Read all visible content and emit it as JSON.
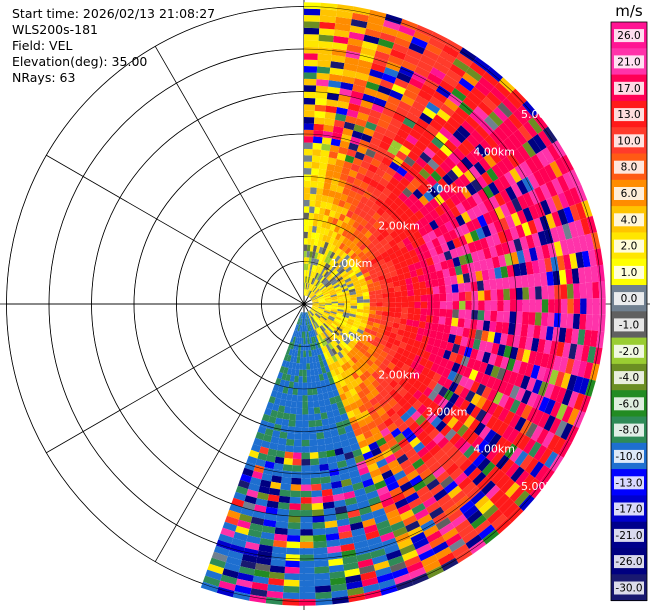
{
  "info": {
    "start_time": "Start time: 2026/02/13 21:08:27",
    "instrument": "WLS200s-181",
    "field": "Field: VEL",
    "elevation": "Elevation(deg): 35.00",
    "nrays": "NRays: 63"
  },
  "chart_data": {
    "type": "heatmap",
    "projection": "polar-ppi",
    "field": "VEL",
    "nrays": 63,
    "sector_azimuth_deg": [
      0,
      200
    ],
    "range_rings": [
      {
        "value": 1,
        "label": "1.00km"
      },
      {
        "value": 2,
        "label": "2.00km"
      },
      {
        "value": 3,
        "label": "3.00km"
      },
      {
        "value": 4,
        "label": "4.00km"
      },
      {
        "value": 5,
        "label": "5.00km"
      }
    ],
    "max_range_km": 7,
    "colorbar": {
      "unit": "m/s",
      "ticks": [
        "26.0",
        "21.0",
        "17.0",
        "13.0",
        "10.0",
        "8.0",
        "6.0",
        "4.0",
        "2.0",
        "1.0",
        "0.0",
        "-1.0",
        "-2.0",
        "-4.0",
        "-6.0",
        "-8.0",
        "-10.0",
        "-13.0",
        "-17.0",
        "-21.0",
        "-26.0",
        "-30.0"
      ],
      "colors": [
        "#ff1493",
        "#ff33aa",
        "#ff0055",
        "#ff1a1a",
        "#ff3b2b",
        "#ff5a14",
        "#ff8c00",
        "#ffc400",
        "#ffe600",
        "#ffff00",
        "#708090",
        "#606060",
        "#9acd32",
        "#6b8e23",
        "#228b22",
        "#2e8b57",
        "#1e6fd0",
        "#0000ff",
        "#0000cd",
        "#00008b",
        "#000080",
        "#191970"
      ]
    }
  }
}
